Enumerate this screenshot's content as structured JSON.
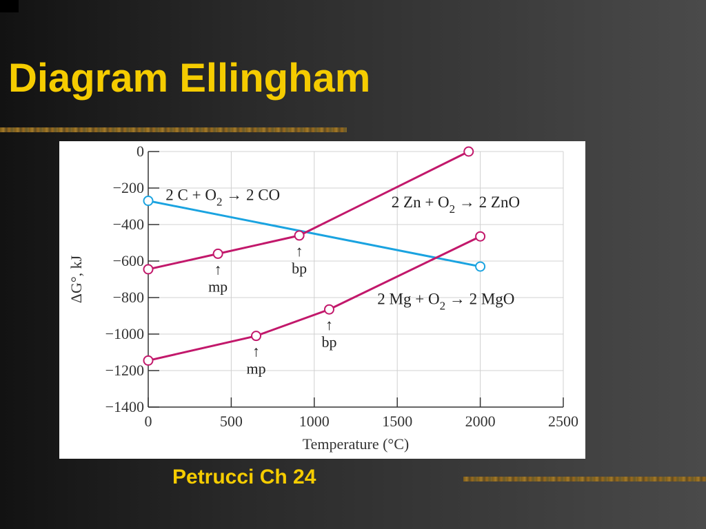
{
  "slide": {
    "title": "Diagram Ellingham",
    "caption": "Petrucci Ch 24"
  },
  "colors": {
    "title_text": "#f5cc00",
    "oxide_lines": "#c2186b",
    "carbon_line": "#1aa3e0",
    "grid": "#d0d0d0"
  },
  "chart_data": {
    "type": "line",
    "xlabel": "Temperature (°C)",
    "ylabel": "ΔG°, kJ",
    "xlim": [
      0,
      2500
    ],
    "ylim": [
      -1400,
      0
    ],
    "x_ticks": [
      "0",
      "500",
      "1000",
      "1500",
      "2000",
      "2500"
    ],
    "y_ticks": [
      "0",
      "−200",
      "−400",
      "−600",
      "−800",
      "−1000",
      "−1200",
      "−1400"
    ],
    "grid": true,
    "series": [
      {
        "name": "2 C + O2 → 2 CO",
        "label_parts": {
          "pre": "2 C + O",
          "sub": "2",
          "post": " → 2 CO"
        },
        "color": "#1aa3e0",
        "points": [
          [
            0,
            -270
          ],
          [
            2000,
            -630
          ]
        ]
      },
      {
        "name": "2 Zn + O2 → 2 ZnO",
        "label_parts": {
          "pre": "2 Zn + O",
          "sub": "2",
          "post": " → 2 ZnO"
        },
        "color": "#c2186b",
        "points": [
          [
            0,
            -645
          ],
          [
            420,
            -560
          ],
          [
            910,
            -460
          ],
          [
            1930,
            0
          ]
        ]
      },
      {
        "name": "2 Mg + O2 → 2 MgO",
        "label_parts": {
          "pre": "2 Mg + O",
          "sub": "2",
          "post": " → 2 MgO"
        },
        "color": "#c2186b",
        "points": [
          [
            0,
            -1145
          ],
          [
            650,
            -1010
          ],
          [
            1090,
            -865
          ],
          [
            2000,
            -465
          ]
        ]
      }
    ],
    "annotations": [
      {
        "text": "mp",
        "arrow": "↑",
        "x": 420,
        "y": -560
      },
      {
        "text": "bp",
        "arrow": "↑",
        "x": 910,
        "y": -460
      },
      {
        "text": "mp",
        "arrow": "↑",
        "x": 650,
        "y": -1010
      },
      {
        "text": "bp",
        "arrow": "↑",
        "x": 1090,
        "y": -865
      }
    ]
  }
}
